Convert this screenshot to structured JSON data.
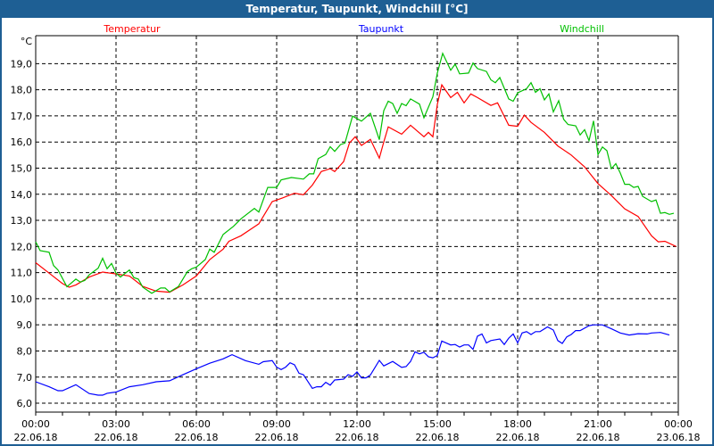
{
  "window": {
    "title": "Temperatur, Taupunkt, Windchill [°C]"
  },
  "chart_data": {
    "type": "line",
    "title": "Temperatur, Taupunkt, Windchill [°C]",
    "ylabel": "°C",
    "xlabel": "",
    "ylim": [
      5.66,
      20.07
    ],
    "xlim": [
      "22.06.18 00:00",
      "23.06.18 00:00"
    ],
    "grid": true,
    "legend": "top",
    "y_ticks": [
      "6,0",
      "7,0",
      "8,0",
      "9,0",
      "10,0",
      "11,0",
      "12,0",
      "13,0",
      "14,0",
      "15,0",
      "16,0",
      "17,0",
      "18,0",
      "19,0"
    ],
    "x_ticks": [
      {
        "time": "00:00",
        "date": "22.06.18"
      },
      {
        "time": "03:00",
        "date": "22.06.18"
      },
      {
        "time": "06:00",
        "date": "22.06.18"
      },
      {
        "time": "09:00",
        "date": "22.06.18"
      },
      {
        "time": "12:00",
        "date": "22.06.18"
      },
      {
        "time": "15:00",
        "date": "22.06.18"
      },
      {
        "time": "18:00",
        "date": "22.06.18"
      },
      {
        "time": "21:00",
        "date": "22.06.18"
      },
      {
        "time": "00:00",
        "date": "23.06.18"
      }
    ],
    "series": [
      {
        "name": "Temperatur",
        "color": "#ff0000",
        "points": [
          [
            "00:00",
            11.38
          ],
          [
            "00:30",
            10.98
          ],
          [
            "01:00",
            10.58
          ],
          [
            "01:15",
            10.44
          ],
          [
            "01:30",
            10.53
          ],
          [
            "02:00",
            10.83
          ],
          [
            "02:30",
            11.02
          ],
          [
            "03:00",
            10.95
          ],
          [
            "03:30",
            10.87
          ],
          [
            "04:00",
            10.47
          ],
          [
            "04:30",
            10.29
          ],
          [
            "05:00",
            10.25
          ],
          [
            "05:30",
            10.53
          ],
          [
            "06:00",
            10.87
          ],
          [
            "06:30",
            11.5
          ],
          [
            "07:00",
            11.9
          ],
          [
            "07:13",
            12.2
          ],
          [
            "07:40",
            12.41
          ],
          [
            "08:20",
            12.87
          ],
          [
            "08:50",
            13.72
          ],
          [
            "09:13",
            13.86
          ],
          [
            "09:40",
            14.04
          ],
          [
            "10:00",
            13.98
          ],
          [
            "10:20",
            14.35
          ],
          [
            "10:40",
            14.87
          ],
          [
            "11:00",
            14.98
          ],
          [
            "11:10",
            14.87
          ],
          [
            "11:30",
            15.25
          ],
          [
            "11:43",
            15.96
          ],
          [
            "11:56",
            16.2
          ],
          [
            "12:10",
            15.87
          ],
          [
            "12:30",
            16.1
          ],
          [
            "12:50",
            15.38
          ],
          [
            "13:00",
            16.0
          ],
          [
            "13:10",
            16.58
          ],
          [
            "13:40",
            16.3
          ],
          [
            "14:00",
            16.64
          ],
          [
            "14:30",
            16.2
          ],
          [
            "14:40",
            16.37
          ],
          [
            "14:50",
            16.2
          ],
          [
            "15:00",
            17.44
          ],
          [
            "15:10",
            18.19
          ],
          [
            "15:30",
            17.7
          ],
          [
            "15:45",
            17.9
          ],
          [
            "16:00",
            17.5
          ],
          [
            "16:15",
            17.84
          ],
          [
            "16:30",
            17.7
          ],
          [
            "17:00",
            17.4
          ],
          [
            "17:15",
            17.5
          ],
          [
            "17:40",
            16.64
          ],
          [
            "18:00",
            16.6
          ],
          [
            "18:15",
            17.03
          ],
          [
            "18:30",
            16.75
          ],
          [
            "19:00",
            16.37
          ],
          [
            "19:30",
            15.85
          ],
          [
            "20:00",
            15.5
          ],
          [
            "20:30",
            15.05
          ],
          [
            "21:00",
            14.41
          ],
          [
            "21:30",
            13.95
          ],
          [
            "22:00",
            13.44
          ],
          [
            "22:30",
            13.15
          ],
          [
            "23:00",
            12.41
          ],
          [
            "23:15",
            12.18
          ],
          [
            "23:30",
            12.2
          ],
          [
            "23:55",
            12.0
          ]
        ]
      },
      {
        "name": "Taupunkt",
        "color": "#0000ff",
        "points": [
          [
            "00:00",
            6.82
          ],
          [
            "00:30",
            6.63
          ],
          [
            "00:50",
            6.48
          ],
          [
            "01:00",
            6.48
          ],
          [
            "01:30",
            6.71
          ],
          [
            "02:00",
            6.37
          ],
          [
            "02:20",
            6.31
          ],
          [
            "02:30",
            6.31
          ],
          [
            "02:40",
            6.38
          ],
          [
            "03:00",
            6.43
          ],
          [
            "03:30",
            6.63
          ],
          [
            "04:00",
            6.71
          ],
          [
            "04:30",
            6.82
          ],
          [
            "05:00",
            6.86
          ],
          [
            "05:30",
            7.09
          ],
          [
            "06:00",
            7.32
          ],
          [
            "06:30",
            7.53
          ],
          [
            "07:00",
            7.7
          ],
          [
            "07:20",
            7.86
          ],
          [
            "07:50",
            7.63
          ],
          [
            "08:20",
            7.49
          ],
          [
            "08:30",
            7.59
          ],
          [
            "08:50",
            7.63
          ],
          [
            "09:00",
            7.38
          ],
          [
            "09:10",
            7.29
          ],
          [
            "09:20",
            7.38
          ],
          [
            "09:30",
            7.55
          ],
          [
            "09:40",
            7.47
          ],
          [
            "09:50",
            7.15
          ],
          [
            "10:00",
            7.09
          ],
          [
            "10:20",
            6.57
          ],
          [
            "10:30",
            6.63
          ],
          [
            "10:40",
            6.63
          ],
          [
            "10:50",
            6.8
          ],
          [
            "11:00",
            6.69
          ],
          [
            "11:10",
            6.89
          ],
          [
            "11:30",
            6.92
          ],
          [
            "11:40",
            7.09
          ],
          [
            "11:50",
            7.03
          ],
          [
            "12:00",
            7.2
          ],
          [
            "12:10",
            6.97
          ],
          [
            "12:20",
            6.97
          ],
          [
            "12:30",
            7.08
          ],
          [
            "12:50",
            7.64
          ],
          [
            "13:00",
            7.43
          ],
          [
            "13:20",
            7.6
          ],
          [
            "13:40",
            7.37
          ],
          [
            "13:50",
            7.4
          ],
          [
            "14:00",
            7.6
          ],
          [
            "14:10",
            7.97
          ],
          [
            "14:20",
            7.89
          ],
          [
            "14:30",
            7.95
          ],
          [
            "14:40",
            7.78
          ],
          [
            "14:50",
            7.74
          ],
          [
            "15:00",
            7.83
          ],
          [
            "15:10",
            8.38
          ],
          [
            "15:30",
            8.23
          ],
          [
            "15:40",
            8.25
          ],
          [
            "15:50",
            8.15
          ],
          [
            "16:00",
            8.23
          ],
          [
            "16:10",
            8.23
          ],
          [
            "16:20",
            8.06
          ],
          [
            "16:30",
            8.57
          ],
          [
            "16:40",
            8.65
          ],
          [
            "16:50",
            8.31
          ],
          [
            "17:00",
            8.4
          ],
          [
            "17:20",
            8.46
          ],
          [
            "17:30",
            8.25
          ],
          [
            "17:40",
            8.49
          ],
          [
            "17:50",
            8.65
          ],
          [
            "18:00",
            8.31
          ],
          [
            "18:10",
            8.69
          ],
          [
            "18:20",
            8.74
          ],
          [
            "18:30",
            8.63
          ],
          [
            "18:40",
            8.74
          ],
          [
            "18:50",
            8.74
          ],
          [
            "19:07",
            8.92
          ],
          [
            "19:20",
            8.8
          ],
          [
            "19:30",
            8.4
          ],
          [
            "19:40",
            8.29
          ],
          [
            "19:50",
            8.54
          ],
          [
            "20:00",
            8.63
          ],
          [
            "20:10",
            8.78
          ],
          [
            "20:20",
            8.78
          ],
          [
            "20:40",
            8.97
          ],
          [
            "20:50",
            9.0
          ],
          [
            "21:10",
            9.0
          ],
          [
            "21:30",
            8.85
          ],
          [
            "21:50",
            8.69
          ],
          [
            "22:10",
            8.61
          ],
          [
            "22:30",
            8.66
          ],
          [
            "22:50",
            8.65
          ],
          [
            "23:00",
            8.69
          ],
          [
            "23:20",
            8.71
          ],
          [
            "23:40",
            8.61
          ]
        ]
      },
      {
        "name": "Windchill",
        "color": "#00c000",
        "points": [
          [
            "00:00",
            12.18
          ],
          [
            "00:10",
            11.84
          ],
          [
            "00:30",
            11.78
          ],
          [
            "00:40",
            11.27
          ],
          [
            "00:50",
            11.1
          ],
          [
            "01:10",
            10.46
          ],
          [
            "01:30",
            10.75
          ],
          [
            "01:40",
            10.64
          ],
          [
            "01:50",
            10.7
          ],
          [
            "02:00",
            10.92
          ],
          [
            "02:20",
            11.17
          ],
          [
            "02:30",
            11.55
          ],
          [
            "02:40",
            11.15
          ],
          [
            "02:50",
            11.35
          ],
          [
            "03:00",
            10.98
          ],
          [
            "03:10",
            10.83
          ],
          [
            "03:30",
            11.1
          ],
          [
            "03:40",
            10.81
          ],
          [
            "03:50",
            10.75
          ],
          [
            "04:00",
            10.44
          ],
          [
            "04:20",
            10.21
          ],
          [
            "04:40",
            10.41
          ],
          [
            "04:50",
            10.41
          ],
          [
            "05:00",
            10.26
          ],
          [
            "05:20",
            10.47
          ],
          [
            "05:40",
            11.04
          ],
          [
            "05:50",
            11.15
          ],
          [
            "06:00",
            11.21
          ],
          [
            "06:20",
            11.5
          ],
          [
            "06:30",
            11.9
          ],
          [
            "06:40",
            11.78
          ],
          [
            "07:00",
            12.46
          ],
          [
            "07:23",
            12.77
          ],
          [
            "07:40",
            13.06
          ],
          [
            "08:10",
            13.46
          ],
          [
            "08:20",
            13.32
          ],
          [
            "08:40",
            14.26
          ],
          [
            "09:00",
            14.26
          ],
          [
            "09:10",
            14.55
          ],
          [
            "09:33",
            14.64
          ],
          [
            "10:00",
            14.58
          ],
          [
            "10:13",
            14.78
          ],
          [
            "10:23",
            14.78
          ],
          [
            "10:33",
            15.36
          ],
          [
            "10:50",
            15.52
          ],
          [
            "11:00",
            15.82
          ],
          [
            "11:10",
            15.64
          ],
          [
            "11:23",
            15.9
          ],
          [
            "11:33",
            15.96
          ],
          [
            "11:50",
            16.99
          ],
          [
            "12:10",
            16.8
          ],
          [
            "12:30",
            17.1
          ],
          [
            "12:50",
            16.09
          ],
          [
            "13:00",
            17.2
          ],
          [
            "13:10",
            17.56
          ],
          [
            "13:20",
            17.47
          ],
          [
            "13:30",
            17.1
          ],
          [
            "13:40",
            17.47
          ],
          [
            "13:50",
            17.39
          ],
          [
            "14:00",
            17.65
          ],
          [
            "14:20",
            17.45
          ],
          [
            "14:30",
            16.93
          ],
          [
            "14:50",
            17.73
          ],
          [
            "15:00",
            18.64
          ],
          [
            "15:12",
            19.39
          ],
          [
            "15:30",
            18.75
          ],
          [
            "15:40",
            18.98
          ],
          [
            "15:50",
            18.61
          ],
          [
            "16:10",
            18.64
          ],
          [
            "16:20",
            19.02
          ],
          [
            "16:30",
            18.81
          ],
          [
            "16:50",
            18.7
          ],
          [
            "17:00",
            18.38
          ],
          [
            "17:10",
            18.27
          ],
          [
            "17:20",
            18.47
          ],
          [
            "17:40",
            17.65
          ],
          [
            "17:50",
            17.56
          ],
          [
            "18:00",
            17.88
          ],
          [
            "18:20",
            18.04
          ],
          [
            "18:30",
            18.27
          ],
          [
            "18:40",
            17.9
          ],
          [
            "18:50",
            18.04
          ],
          [
            "19:00",
            17.61
          ],
          [
            "19:10",
            17.84
          ],
          [
            "19:20",
            17.15
          ],
          [
            "19:32",
            17.58
          ],
          [
            "19:43",
            16.87
          ],
          [
            "19:53",
            16.67
          ],
          [
            "20:10",
            16.62
          ],
          [
            "20:20",
            16.27
          ],
          [
            "20:30",
            16.47
          ],
          [
            "20:40",
            16.05
          ],
          [
            "20:50",
            16.81
          ],
          [
            "21:00",
            15.52
          ],
          [
            "21:10",
            15.81
          ],
          [
            "21:20",
            15.67
          ],
          [
            "21:30",
            14.98
          ],
          [
            "21:40",
            15.17
          ],
          [
            "21:50",
            14.81
          ],
          [
            "22:00",
            14.38
          ],
          [
            "22:10",
            14.38
          ],
          [
            "22:20",
            14.26
          ],
          [
            "22:30",
            14.3
          ],
          [
            "22:40",
            13.92
          ],
          [
            "23:00",
            13.72
          ],
          [
            "23:10",
            13.78
          ],
          [
            "23:20",
            13.27
          ],
          [
            "23:30",
            13.3
          ],
          [
            "23:40",
            13.23
          ],
          [
            "23:50",
            13.27
          ]
        ]
      }
    ]
  }
}
